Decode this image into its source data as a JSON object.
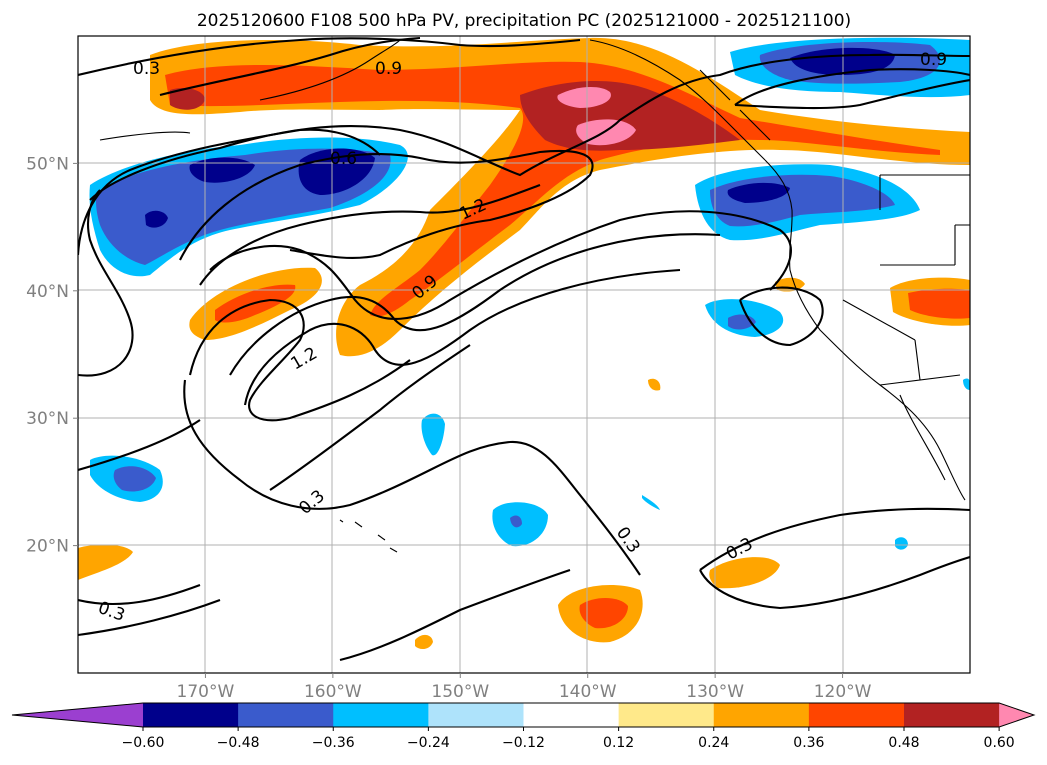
{
  "chart_data": {
    "type": "contour-map",
    "title": "2025120600 F108 500 hPa PV, precipitation PC (2025121000 - 2025121100)",
    "map": {
      "region": "North Pacific / western North America",
      "lon_range": [
        -180,
        -110
      ],
      "lat_range": [
        10,
        60
      ],
      "grid": true
    },
    "x_ticks": [
      "170°W",
      "160°W",
      "150°W",
      "140°W",
      "130°W",
      "120°W"
    ],
    "x_tick_values": [
      -170,
      -160,
      -150,
      -140,
      -130,
      -120
    ],
    "y_ticks": [
      "50°N",
      "40°N",
      "30°N",
      "20°N"
    ],
    "y_tick_values": [
      50,
      40,
      30,
      20
    ],
    "pv_contours": {
      "levels": [
        0.3,
        0.6,
        0.9,
        1.2
      ],
      "labels_shown": [
        "0.3",
        "0.9",
        "0.9",
        "0.6",
        "1.2",
        "0.9",
        "1.2",
        "0.3",
        "0.3",
        "0.3",
        "0.3"
      ],
      "color": "#000000"
    },
    "colorbar": {
      "levels": [
        -0.6,
        -0.48,
        -0.36,
        -0.24,
        -0.12,
        0.12,
        0.24,
        0.36,
        0.48,
        0.6
      ],
      "tick_labels": [
        "−0.60",
        "−0.48",
        "−0.36",
        "−0.24",
        "−0.12",
        "0.12",
        "0.24",
        "0.36",
        "0.48",
        "0.60"
      ],
      "colors": [
        "#9b3fd0",
        "#00008b",
        "#3a5bcc",
        "#00bfff",
        "#aee3fb",
        "#ffffff",
        "#ffe98a",
        "#ffa500",
        "#ff4500",
        "#b22222",
        "#ff88b0"
      ],
      "extend": "both"
    }
  }
}
